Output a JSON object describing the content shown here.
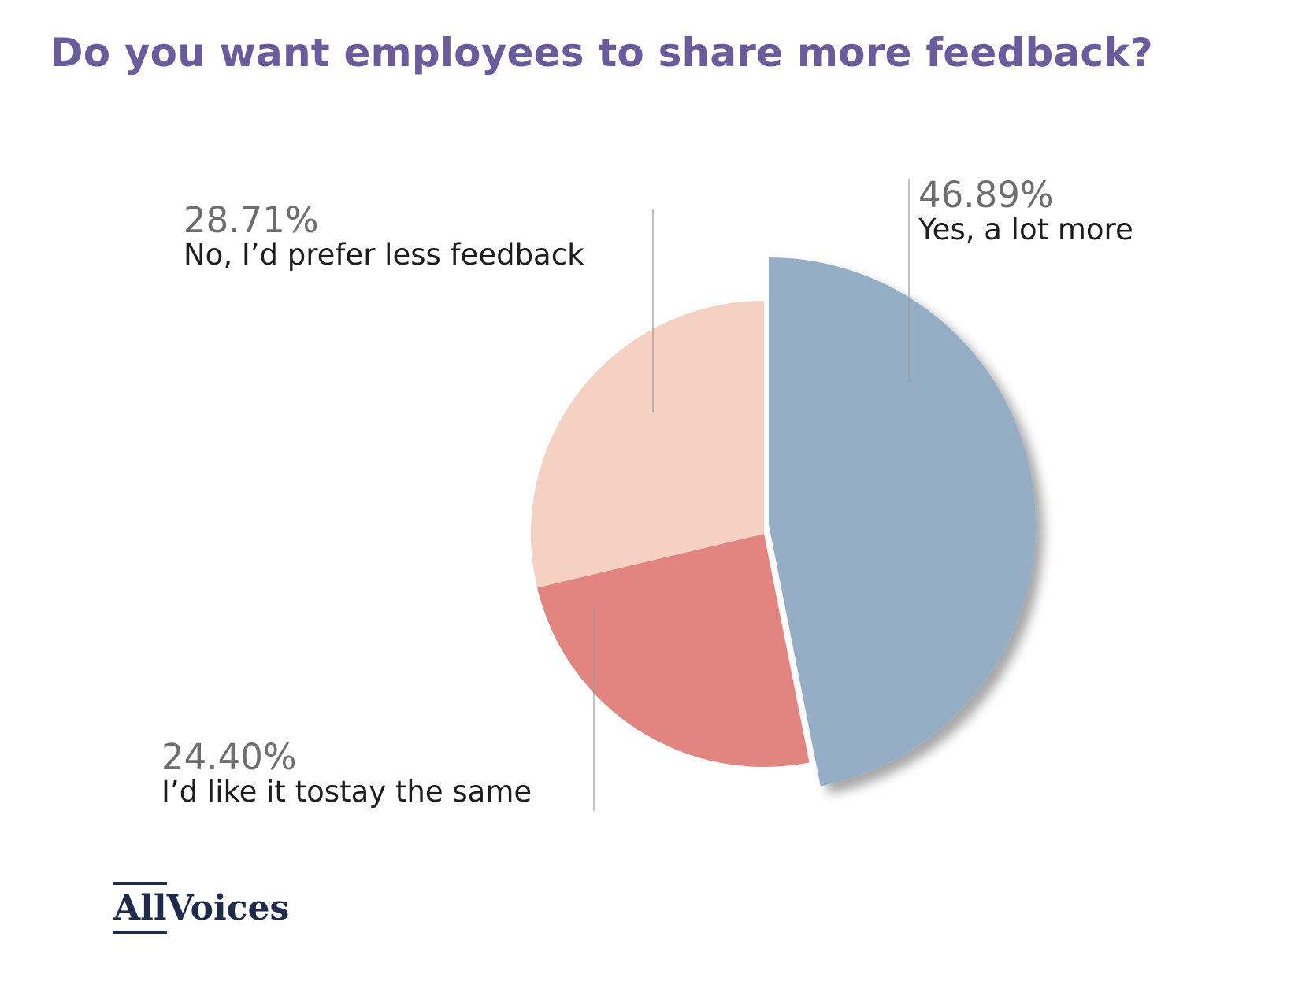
{
  "title": "Do you want employees to share more feedback?",
  "chart_data": {
    "type": "pie",
    "title": "Do you want employees to share more feedback?",
    "slices": [
      {
        "label": "Yes, a lot more",
        "value": 46.89,
        "display": "46.89%",
        "color": "#95aec6",
        "exploded": true
      },
      {
        "label": "I’d like it tostay the same",
        "value": 24.4,
        "display": "24.40%",
        "color": "#e28581"
      },
      {
        "label": "No, I’d prefer less feedback",
        "value": 28.71,
        "display": "28.71%",
        "color": "#f4d1c3"
      }
    ],
    "legend": "none",
    "label_style": "callout-lines"
  },
  "logo": {
    "part1": "All",
    "part2": "Voices",
    "color": "#1e2b4a"
  },
  "colors": {
    "title": "#6a5b9c",
    "percent_text": "#6e6e6e",
    "category_text": "#1d1d1d",
    "leader_line": "#9a9a9a"
  }
}
